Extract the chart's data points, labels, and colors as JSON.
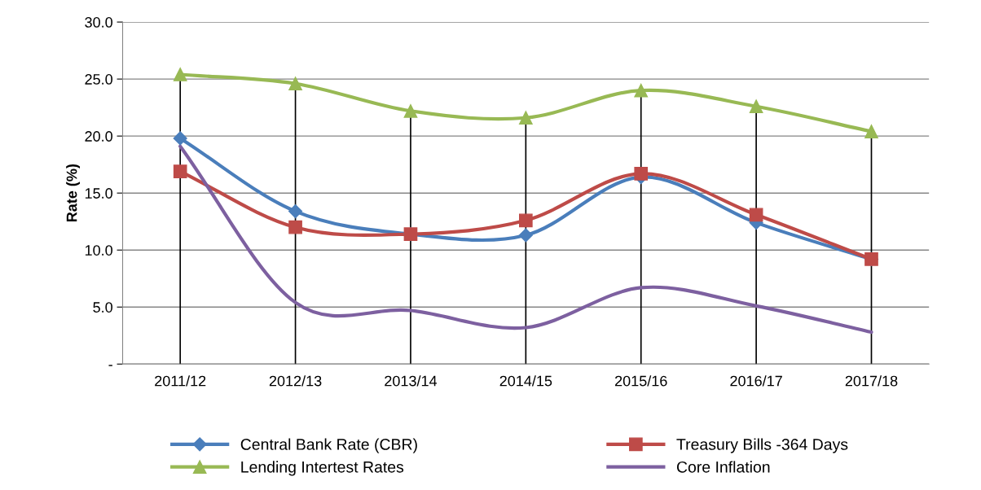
{
  "chart_data": {
    "type": "line",
    "ylabel": "Rate (%)",
    "categories": [
      "2011/12",
      "2012/13",
      "2013/14",
      "2014/15",
      "2015/16",
      "2016/17",
      "2017/18"
    ],
    "ylim": [
      0,
      30
    ],
    "yticks": [
      {
        "value": 0,
        "label": "-"
      },
      {
        "value": 5,
        "label": "5.0"
      },
      {
        "value": 10,
        "label": "10.0"
      },
      {
        "value": 15,
        "label": "15.0"
      },
      {
        "value": 20,
        "label": "20.0"
      },
      {
        "value": 25,
        "label": "25.0"
      },
      {
        "value": 30,
        "label": "30.0"
      }
    ],
    "grid": "y",
    "legend": "bottom",
    "series": [
      {
        "name": "Central Bank Rate (CBR)",
        "color": "#4a7ebb",
        "marker": "diamond",
        "values": [
          19.8,
          13.4,
          11.4,
          11.3,
          16.4,
          12.4,
          9.2
        ]
      },
      {
        "name": "Treasury Bills -364 Days",
        "color": "#be4b48",
        "marker": "square",
        "values": [
          16.9,
          12.0,
          11.4,
          12.6,
          16.7,
          13.1,
          9.2
        ]
      },
      {
        "name": "Lending Intertest Rates",
        "color": "#98b954",
        "marker": "triangle",
        "values": [
          25.4,
          24.6,
          22.2,
          21.6,
          24.0,
          22.6,
          20.4
        ]
      },
      {
        "name": "Core Inflation",
        "color": "#7d60a0",
        "marker": "none",
        "values": [
          19.1,
          5.4,
          4.7,
          3.2,
          6.7,
          5.1,
          2.8
        ]
      }
    ],
    "ref_lines": [
      {
        "axis": "x",
        "value": "2011/12",
        "color": "#000000"
      },
      {
        "axis": "x",
        "value": "2012/13",
        "color": "#000000"
      },
      {
        "axis": "x",
        "value": "2013/14",
        "color": "#000000"
      },
      {
        "axis": "x",
        "value": "2014/15",
        "color": "#000000"
      },
      {
        "axis": "x",
        "value": "2015/16",
        "color": "#000000"
      },
      {
        "axis": "x",
        "value": "2016/17",
        "color": "#000000"
      },
      {
        "axis": "x",
        "value": "2017/18",
        "color": "#000000"
      }
    ]
  }
}
